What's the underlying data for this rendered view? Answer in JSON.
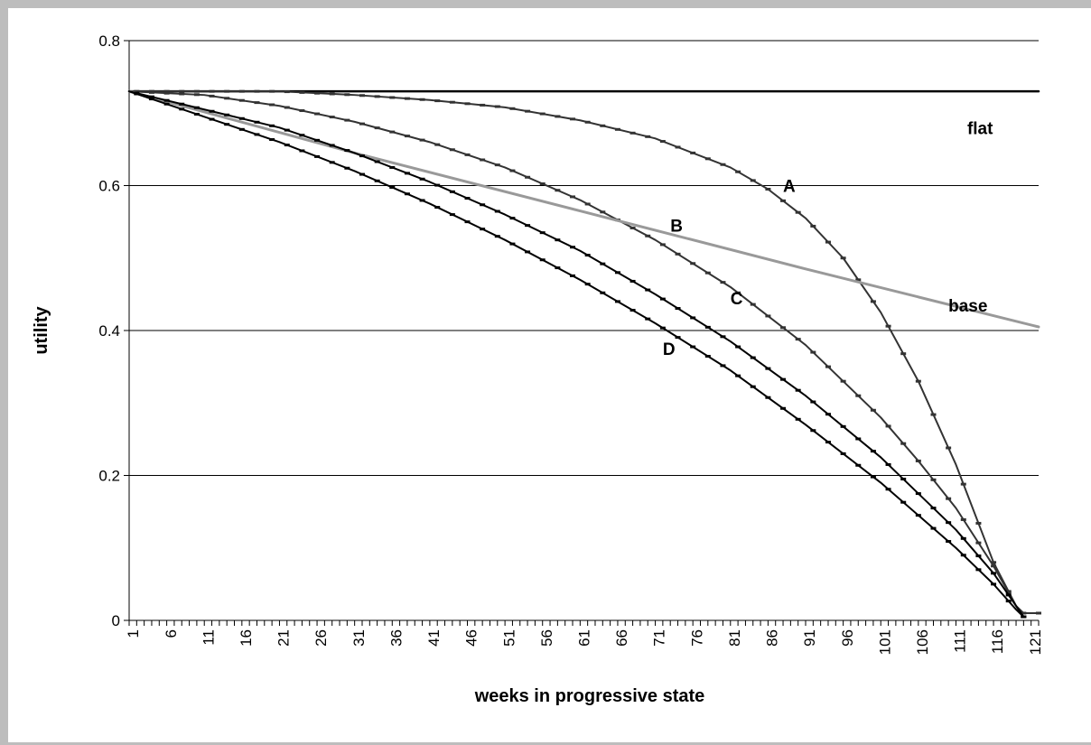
{
  "chart_data": {
    "type": "line",
    "xlabel": "weeks in progressive state",
    "ylabel": "utility",
    "xlim": [
      1,
      122
    ],
    "ylim": [
      0,
      0.8
    ],
    "y_ticks": [
      "0",
      "0.2",
      "0.4",
      "0.6",
      "0.8"
    ],
    "x_tick_labels": [
      "1",
      "6",
      "11",
      "16",
      "21",
      "26",
      "31",
      "36",
      "41",
      "46",
      "51",
      "56",
      "61",
      "66",
      "71",
      "76",
      "81",
      "86",
      "91",
      "96",
      "101",
      "106",
      "111",
      "116",
      "121"
    ],
    "grid": "horizontal",
    "series": [
      {
        "name": "flat",
        "color": "#000000",
        "x": [
          1,
          122
        ],
        "y": [
          0.73,
          0.73
        ]
      },
      {
        "name": "A",
        "color": "#333333",
        "x": [
          1,
          11,
          21,
          31,
          41,
          51,
          61,
          71,
          81,
          86,
          91,
          96,
          101,
          106,
          111,
          116,
          119,
          120,
          122
        ],
        "y": [
          0.73,
          0.73,
          0.73,
          0.725,
          0.718,
          0.708,
          0.69,
          0.665,
          0.625,
          0.595,
          0.555,
          0.5,
          0.425,
          0.33,
          0.215,
          0.08,
          0.02,
          0.01,
          0.01
        ]
      },
      {
        "name": "B",
        "color": "#333333",
        "x": [
          1,
          11,
          21,
          31,
          41,
          51,
          61,
          71,
          81,
          91,
          101,
          106,
          111,
          116,
          119,
          120
        ],
        "y": [
          0.73,
          0.725,
          0.71,
          0.688,
          0.66,
          0.625,
          0.58,
          0.525,
          0.46,
          0.38,
          0.28,
          0.22,
          0.155,
          0.075,
          0.02,
          0.005
        ]
      },
      {
        "name": "base",
        "color": "#999999",
        "x": [
          1,
          31,
          61,
          91,
          122
        ],
        "y": [
          0.73,
          0.645,
          0.565,
          0.485,
          0.405
        ]
      },
      {
        "name": "C",
        "color": "#000000",
        "x": [
          1,
          11,
          21,
          31,
          41,
          51,
          61,
          71,
          81,
          91,
          101,
          106,
          111,
          116,
          119,
          120
        ],
        "y": [
          0.73,
          0.705,
          0.68,
          0.645,
          0.605,
          0.56,
          0.51,
          0.45,
          0.385,
          0.31,
          0.225,
          0.175,
          0.125,
          0.065,
          0.02,
          0.005
        ]
      },
      {
        "name": "D",
        "color": "#000000",
        "x": [
          1,
          11,
          21,
          31,
          41,
          51,
          61,
          71,
          81,
          91,
          101,
          106,
          111,
          116,
          119,
          120
        ],
        "y": [
          0.73,
          0.695,
          0.66,
          0.62,
          0.575,
          0.525,
          0.47,
          0.41,
          0.345,
          0.27,
          0.19,
          0.145,
          0.1,
          0.05,
          0.015,
          0.005
        ]
      }
    ],
    "labels": [
      {
        "text": "flat",
        "x": 112.5,
        "y": 0.68
      },
      {
        "text": "A",
        "x": 88,
        "y": 0.6
      },
      {
        "text": "B",
        "x": 73,
        "y": 0.545
      },
      {
        "text": "base",
        "x": 110,
        "y": 0.435
      },
      {
        "text": "C",
        "x": 81,
        "y": 0.445
      },
      {
        "text": "D",
        "x": 72,
        "y": 0.375
      }
    ]
  }
}
